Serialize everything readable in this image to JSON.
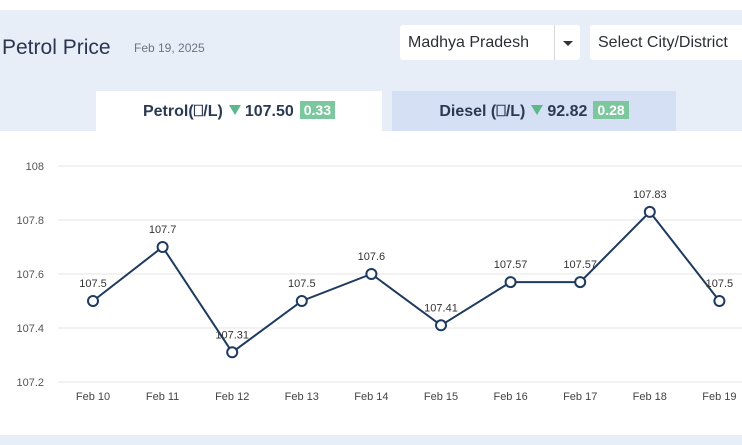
{
  "header": {
    "title": "Petrol Price",
    "date": "Feb 19, 2025",
    "state_select": "Madhya Pradesh",
    "city_select": "Select City/District"
  },
  "tabs": {
    "petrol": {
      "label": "Petrol(⎕/L)",
      "price": "107.50",
      "change": "0.33"
    },
    "diesel": {
      "label": "Diesel (⎕/L)",
      "price": "92.82",
      "change": "0.28"
    }
  },
  "colors": {
    "line": "#1f3a5f",
    "change_badge": "#7cc79e",
    "down_arrow": "#5cb88a"
  },
  "chart_data": {
    "type": "line",
    "categories": [
      "Feb 10",
      "Feb 11",
      "Feb 12",
      "Feb 13",
      "Feb 14",
      "Feb 15",
      "Feb 16",
      "Feb 17",
      "Feb 18",
      "Feb 19"
    ],
    "values": [
      107.5,
      107.7,
      107.31,
      107.5,
      107.6,
      107.41,
      107.57,
      107.57,
      107.83,
      107.5
    ],
    "value_labels": [
      "107.5",
      "107.7",
      "107.31",
      "107.5",
      "107.6",
      "107.41",
      "107.57",
      "107.57",
      "107.83",
      "107.5"
    ],
    "yticks": [
      "108",
      "107.8",
      "107.6",
      "107.4",
      "107.2"
    ],
    "ylim": [
      107.2,
      108
    ],
    "grid": true
  }
}
